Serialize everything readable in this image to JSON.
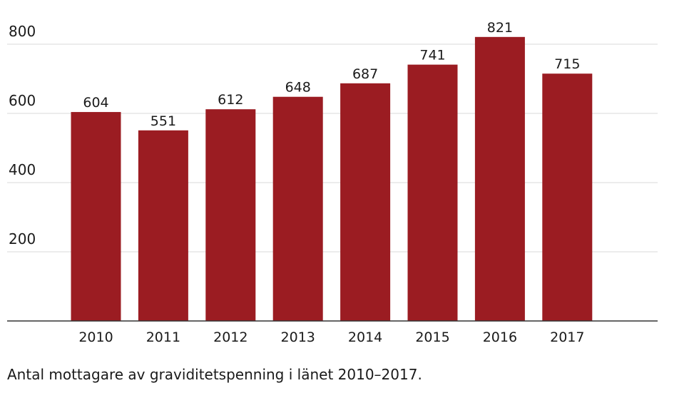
{
  "caption": "Antal mottagare av graviditetspenning i länet 2010–2017.",
  "colors": {
    "bar": "#9b1c22",
    "grid": "#d9d9d9",
    "axis": "#333333"
  },
  "chart_data": {
    "type": "bar",
    "categories": [
      "2010",
      "2011",
      "2012",
      "2013",
      "2014",
      "2015",
      "2016",
      "2017"
    ],
    "values": [
      604,
      551,
      612,
      648,
      687,
      741,
      821,
      715
    ],
    "ylim": [
      0,
      800
    ],
    "yticks": [
      200,
      400,
      600,
      800
    ],
    "grid": true,
    "legend": "none"
  }
}
